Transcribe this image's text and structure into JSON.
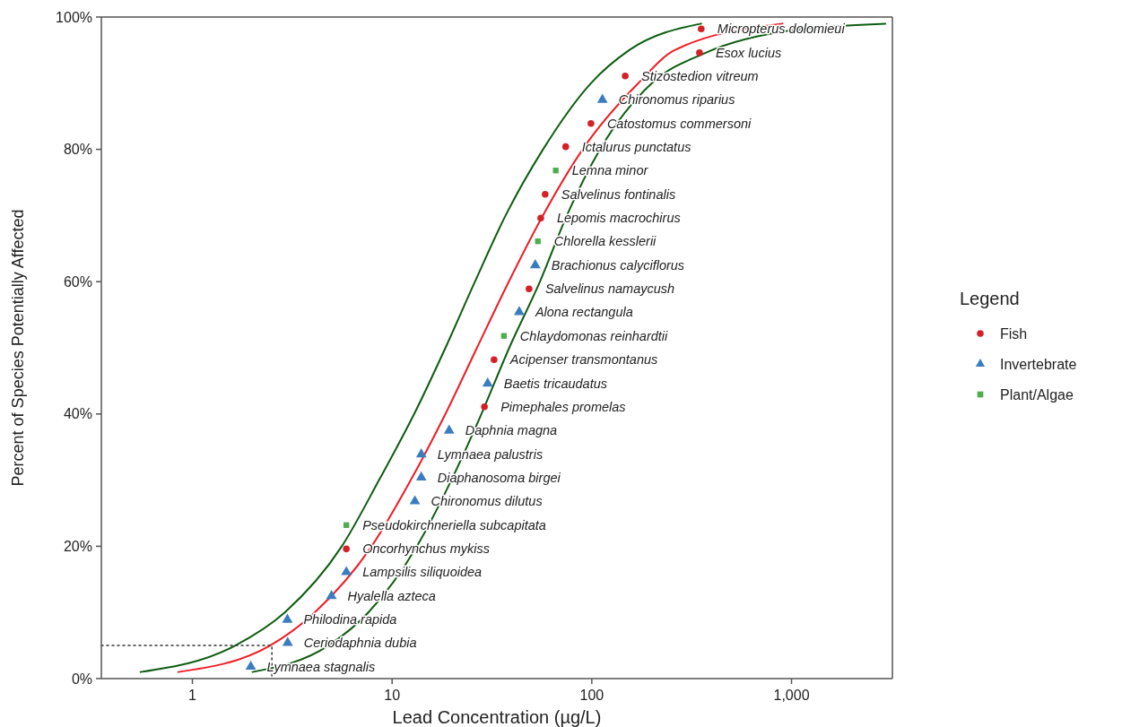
{
  "chart_data": {
    "type": "scatter",
    "xlabel": "Lead Concentration (µg/L)",
    "ylabel": "Percent of Species Potentially Affected",
    "legend_title": "Legend",
    "legend": "right",
    "log": "x",
    "grid": false,
    "xlim": [
      0.35,
      3200
    ],
    "xticks": [
      1,
      10,
      100,
      {
        "value": 1000,
        "label": "1,000"
      }
    ],
    "ylim": [
      0,
      100
    ],
    "yticks": [
      {
        "value": 0,
        "label": "0%"
      },
      {
        "value": 20,
        "label": "20%"
      },
      {
        "value": 40,
        "label": "40%"
      },
      {
        "value": 60,
        "label": "60%"
      },
      {
        "value": 80,
        "label": "80%"
      },
      {
        "value": 100,
        "label": "100%"
      }
    ],
    "series": [
      {
        "name": "Fish",
        "marker": "circle",
        "color": "#d42027",
        "x": [
          5.9,
          29,
          32.4,
          48.5,
          55.5,
          58.4,
          74,
          99,
          147,
          346,
          353
        ],
        "values": [
          19.6,
          41.1,
          48.2,
          58.9,
          69.6,
          73.2,
          80.4,
          83.9,
          91.1,
          94.6,
          98.2
        ]
      },
      {
        "name": "Invertebrate",
        "marker": "triangle",
        "color": "#3a7dbf",
        "x": [
          1.96,
          3.0,
          2.99,
          4.97,
          5.9,
          13.0,
          14,
          14,
          19.3,
          30.1,
          43.3,
          52.1,
          113
        ],
        "values": [
          1.8,
          5.4,
          8.9,
          12.5,
          16.1,
          26.8,
          30.4,
          33.9,
          37.5,
          44.6,
          55.4,
          62.5,
          87.5
        ]
      },
      {
        "name": "Plant/Algae",
        "marker": "square",
        "color": "#4cae4c",
        "x": [
          5.9,
          36.3,
          53.7,
          66
        ],
        "values": [
          23.2,
          51.8,
          66.1,
          76.8
        ]
      },
      {
        "type": "line",
        "color": "#ee1c25",
        "x": [
          0.85,
          2.45,
          4.1,
          7.9,
          12.4,
          18.5,
          26.6,
          38.4,
          56.9,
          90,
          171,
          260,
          900
        ],
        "values": [
          1,
          5,
          10,
          20,
          30,
          40,
          50,
          60,
          70,
          80,
          90,
          95,
          99
        ]
      },
      {
        "type": "line",
        "color": "#0e5c10",
        "x": [
          0.55,
          1.64,
          2.9,
          5.6,
          8.6,
          12.9,
          18.5,
          26,
          37,
          57,
          99,
          154,
          353
        ],
        "values": [
          1,
          5,
          10,
          20,
          30,
          40,
          50,
          60,
          70,
          80,
          90,
          95,
          99
        ]
      },
      {
        "type": "line",
        "color": "#0e5c10",
        "x": [
          2.0,
          4.8,
          7.6,
          13.3,
          19.8,
          28,
          38.6,
          55,
          75,
          110,
          200,
          372,
          1000,
          2950
        ],
        "values": [
          1,
          5,
          10,
          20,
          30,
          40,
          50,
          60,
          70,
          80,
          90,
          94.6,
          98,
          99
        ]
      },
      {
        "type": "line",
        "line_style": "dotted",
        "color": "#333333",
        "x": [
          0.35,
          2.5,
          2.5
        ],
        "values": [
          5,
          5,
          0
        ]
      }
    ],
    "annotations": [
      {
        "text": "Lymnaea stagnalis",
        "x": 1.96,
        "y": 1.8
      },
      {
        "text": "Ceriodaphnia dubia",
        "x": 3.0,
        "y": 5.4
      },
      {
        "text": "Philodina rapida",
        "x": 2.99,
        "y": 8.9
      },
      {
        "text": "Hyalella azteca",
        "x": 4.97,
        "y": 12.5
      },
      {
        "text": "Lampsilis siliquoidea",
        "x": 5.9,
        "y": 16.1
      },
      {
        "text": "Oncorhynchus mykiss",
        "x": 5.9,
        "y": 19.6
      },
      {
        "text": "Pseudokirchneriella subcapitata",
        "x": 5.9,
        "y": 23.2
      },
      {
        "text": "Chironomus dilutus",
        "x": 13.0,
        "y": 26.8
      },
      {
        "text": "Diaphanosoma birgei",
        "x": 14,
        "y": 30.4
      },
      {
        "text": "Lymnaea palustris",
        "x": 14,
        "y": 33.9
      },
      {
        "text": "Daphnia magna",
        "x": 19.3,
        "y": 37.5
      },
      {
        "text": "Pimephales promelas",
        "x": 29,
        "y": 41.1
      },
      {
        "text": "Baetis tricaudatus",
        "x": 30.1,
        "y": 44.6
      },
      {
        "text": "Acipenser transmontanus",
        "x": 32.4,
        "y": 48.2
      },
      {
        "text": "Chlaydomonas reinhardtii",
        "x": 36.3,
        "y": 51.8
      },
      {
        "text": "Alona rectangula",
        "x": 43.3,
        "y": 55.4
      },
      {
        "text": "Salvelinus namaycush",
        "x": 48.5,
        "y": 58.9
      },
      {
        "text": "Brachionus calyciflorus",
        "x": 52.1,
        "y": 62.5
      },
      {
        "text": "Chlorella kesslerii",
        "x": 53.7,
        "y": 66.1
      },
      {
        "text": "Lepomis macrochirus",
        "x": 55.5,
        "y": 69.6
      },
      {
        "text": "Salvelinus fontinalis",
        "x": 58.4,
        "y": 73.2
      },
      {
        "text": "Lemna minor",
        "x": 66,
        "y": 76.8
      },
      {
        "text": "Ictalurus punctatus",
        "x": 74,
        "y": 80.4
      },
      {
        "text": "Catostomus commersoni",
        "x": 99,
        "y": 83.9
      },
      {
        "text": "Chironomus riparius",
        "x": 113,
        "y": 87.5
      },
      {
        "text": "Stizostedion vitreum",
        "x": 147,
        "y": 91.1
      },
      {
        "text": "Esox lucius",
        "x": 346,
        "y": 94.6
      },
      {
        "text": "Micropterus dolomieui",
        "x": 353,
        "y": 98.2
      }
    ]
  }
}
